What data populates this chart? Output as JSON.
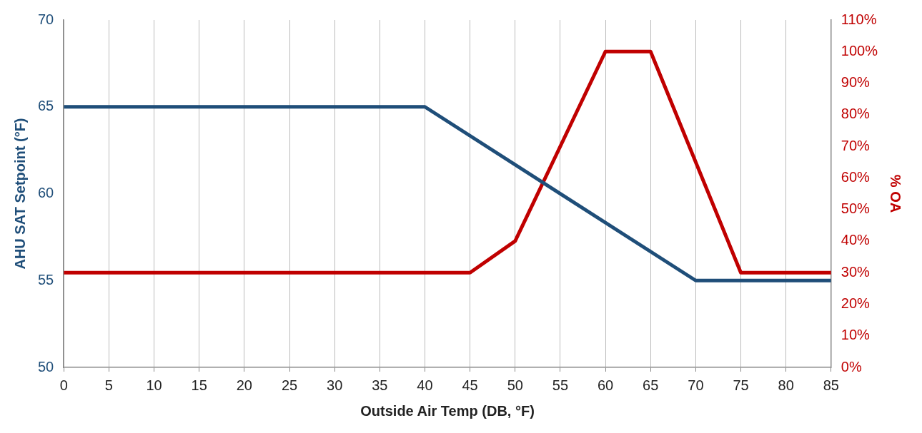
{
  "chart_data": {
    "type": "line",
    "xlabel": "Outside Air Temp (DB, °F)",
    "ylabel": "AHU SAT Setpoint (°F)",
    "y2label": "% OA",
    "xlim": [
      0,
      85
    ],
    "xticks": [
      0,
      5,
      10,
      15,
      20,
      25,
      30,
      35,
      40,
      45,
      50,
      55,
      60,
      65,
      70,
      75,
      80,
      85
    ],
    "ylim": [
      50,
      70
    ],
    "yticks": [
      50,
      55,
      60,
      65,
      70
    ],
    "y2lim": [
      0,
      110
    ],
    "y2ticks": [
      {
        "value": 0,
        "label": "0%"
      },
      {
        "value": 10,
        "label": "10%"
      },
      {
        "value": 20,
        "label": "20%"
      },
      {
        "value": 30,
        "label": "30%"
      },
      {
        "value": 40,
        "label": "40%"
      },
      {
        "value": 50,
        "label": "50%"
      },
      {
        "value": 60,
        "label": "60%"
      },
      {
        "value": 70,
        "label": "70%"
      },
      {
        "value": 80,
        "label": "80%"
      },
      {
        "value": 90,
        "label": "90%"
      },
      {
        "value": 100,
        "label": "100%"
      },
      {
        "value": 110,
        "label": "110%"
      }
    ],
    "grid": "x",
    "legend": false,
    "marker": "none",
    "line_style": "solid",
    "series": [
      {
        "color": "#1f4e79",
        "x": [
          0,
          40,
          70,
          85
        ],
        "values": [
          65,
          65,
          55,
          55
        ]
      },
      {
        "color": "#c00000",
        "axis": "y2",
        "x": [
          0,
          45,
          50,
          60,
          65,
          75,
          85
        ],
        "values": [
          30,
          30,
          40,
          100,
          100,
          30,
          30
        ]
      }
    ]
  }
}
